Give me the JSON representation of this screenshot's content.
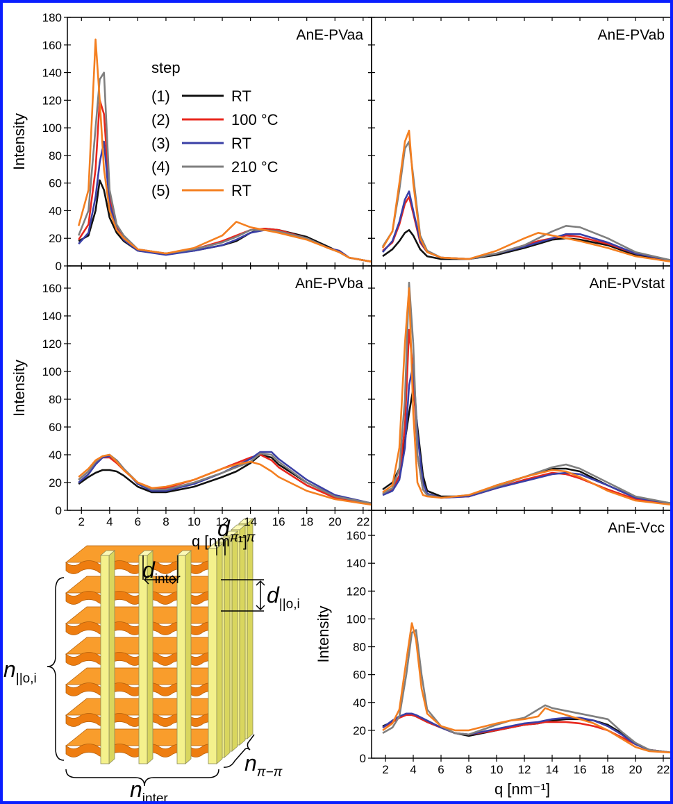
{
  "chart_data": [
    {
      "type": "line",
      "title": "AnE-PVaa",
      "y_label": "Intensity",
      "legend_title": "step",
      "x": [
        1.8,
        2.5,
        3,
        3.3,
        3.6,
        4,
        4.5,
        5,
        6,
        8,
        10,
        12,
        13,
        14,
        15,
        16,
        18,
        19.5,
        20.3,
        21,
        22.6
      ],
      "xlim": [
        1,
        22.6
      ],
      "xticks": [
        2,
        4,
        6,
        8,
        10,
        12,
        14,
        16,
        18,
        20,
        22
      ],
      "ylim": [
        0,
        180
      ],
      "yticks": [
        0,
        20,
        40,
        60,
        80,
        100,
        120,
        140,
        160,
        180
      ],
      "show_x_tick_labels": false,
      "show_y_tick_labels": true,
      "series": [
        {
          "step": "(1)",
          "name": "RT",
          "color": "#111111",
          "values": [
            18,
            22,
            40,
            62,
            55,
            35,
            24,
            18,
            11,
            9,
            11,
            15,
            18,
            24,
            27,
            26,
            21,
            14,
            10,
            6,
            3
          ]
        },
        {
          "step": "(2)",
          "name": "100 °C",
          "color": "#e8271d",
          "values": [
            19,
            30,
            70,
            120,
            110,
            50,
            28,
            20,
            12,
            9,
            12,
            18,
            22,
            26,
            27,
            26,
            20,
            13,
            11,
            6,
            3
          ]
        },
        {
          "step": "(3)",
          "name": "RT",
          "color": "#3a3fa6",
          "values": [
            16,
            24,
            50,
            75,
            90,
            45,
            27,
            19,
            11,
            8,
            11,
            15,
            19,
            24,
            26,
            25,
            20,
            13,
            11,
            6,
            3
          ]
        },
        {
          "step": "(4)",
          "name": "210 °C",
          "color": "#7f7f7f",
          "values": [
            22,
            40,
            100,
            135,
            140,
            55,
            30,
            22,
            12,
            9,
            12,
            17,
            21,
            26,
            26,
            25,
            20,
            13,
            10,
            6,
            3
          ]
        },
        {
          "step": "(5)",
          "name": "RT",
          "color": "#f47f20",
          "values": [
            29,
            55,
            164,
            120,
            70,
            40,
            26,
            20,
            12,
            9,
            13,
            22,
            32,
            28,
            26,
            24,
            19,
            13,
            10,
            6,
            3
          ]
        }
      ]
    },
    {
      "type": "line",
      "title": "AnE-PVab",
      "x": [
        1.8,
        2.5,
        3,
        3.4,
        3.7,
        4,
        4.5,
        5,
        6,
        8,
        10,
        12,
        13,
        14,
        15,
        16,
        18,
        20,
        22.6
      ],
      "xlim": [
        1,
        22.7
      ],
      "xticks": [
        2,
        4,
        6,
        8,
        10,
        12,
        14,
        16,
        18,
        20,
        22
      ],
      "ylim": [
        0,
        180
      ],
      "yticks": [
        0,
        20,
        40,
        60,
        80,
        100,
        120,
        140,
        160,
        180
      ],
      "show_x_tick_labels": false,
      "show_y_tick_labels": false,
      "series": [
        {
          "color": "#111111",
          "values": [
            7,
            12,
            18,
            24,
            26,
            22,
            12,
            7,
            5,
            5,
            8,
            13,
            16,
            19,
            20,
            19,
            15,
            8,
            4
          ]
        },
        {
          "color": "#e8271d",
          "values": [
            11,
            17,
            30,
            45,
            50,
            38,
            17,
            10,
            6,
            5,
            9,
            15,
            18,
            20,
            22,
            21,
            16,
            9,
            4
          ]
        },
        {
          "color": "#3a3fa6",
          "values": [
            10,
            18,
            32,
            48,
            54,
            40,
            18,
            10,
            6,
            5,
            9,
            14,
            17,
            20,
            23,
            23,
            17,
            9,
            4
          ]
        },
        {
          "color": "#7f7f7f",
          "values": [
            14,
            25,
            55,
            85,
            90,
            65,
            22,
            11,
            6,
            5,
            9,
            15,
            20,
            25,
            29,
            28,
            20,
            10,
            4
          ]
        },
        {
          "color": "#f47f20",
          "values": [
            13,
            25,
            60,
            90,
            98,
            60,
            20,
            10,
            6,
            5,
            11,
            20,
            24,
            22,
            20,
            18,
            13,
            7,
            3
          ]
        }
      ]
    },
    {
      "type": "line",
      "title": "AnE-PVba",
      "y_label": "Intensity",
      "x_label": "q  [nm⁻¹]",
      "x": [
        1.8,
        2.5,
        3,
        3.5,
        4,
        4.5,
        5,
        6,
        7,
        8,
        10,
        12,
        13,
        14,
        14.7,
        15.5,
        16,
        18,
        20,
        22.6
      ],
      "xlim": [
        1,
        22.6
      ],
      "xticks": [
        2,
        4,
        6,
        8,
        10,
        12,
        14,
        16,
        18,
        20,
        22
      ],
      "ylim": [
        0,
        176
      ],
      "yticks": [
        0,
        20,
        40,
        60,
        80,
        100,
        120,
        140,
        160
      ],
      "show_x_tick_labels": true,
      "show_y_tick_labels": true,
      "series": [
        {
          "color": "#111111",
          "values": [
            19,
            24,
            27,
            29,
            29,
            28,
            25,
            17,
            13,
            13,
            17,
            24,
            28,
            34,
            40,
            38,
            33,
            20,
            10,
            5
          ]
        },
        {
          "color": "#e8271d",
          "values": [
            22,
            28,
            34,
            38,
            38,
            34,
            29,
            20,
            16,
            16,
            22,
            30,
            34,
            38,
            40,
            36,
            31,
            18,
            9,
            5
          ]
        },
        {
          "color": "#3a3fa6",
          "values": [
            20,
            26,
            33,
            38,
            39,
            36,
            30,
            19,
            14,
            14,
            19,
            27,
            32,
            37,
            42,
            42,
            37,
            22,
            11,
            5
          ]
        },
        {
          "color": "#7f7f7f",
          "values": [
            22,
            28,
            35,
            39,
            40,
            36,
            30,
            20,
            15,
            15,
            20,
            27,
            31,
            35,
            41,
            40,
            35,
            20,
            10,
            5
          ]
        },
        {
          "color": "#f47f20",
          "values": [
            24,
            30,
            36,
            39,
            40,
            35,
            29,
            20,
            16,
            17,
            22,
            30,
            33,
            35,
            33,
            28,
            24,
            14,
            8,
            4
          ]
        }
      ]
    },
    {
      "type": "line",
      "title": "AnE-PVstat",
      "x": [
        1.8,
        2.5,
        3,
        3.4,
        3.7,
        4,
        4.3,
        4.7,
        5,
        6,
        8,
        10,
        12,
        14,
        15,
        16,
        18,
        20,
        22.6
      ],
      "xlim": [
        1,
        22.7
      ],
      "xticks": [
        2,
        4,
        6,
        8,
        10,
        12,
        14,
        16,
        18,
        20,
        22
      ],
      "ylim": [
        0,
        176
      ],
      "yticks": [
        0,
        20,
        40,
        60,
        80,
        100,
        120,
        140,
        160
      ],
      "show_x_tick_labels": false,
      "show_y_tick_labels": false,
      "series": [
        {
          "color": "#111111",
          "values": [
            15,
            20,
            30,
            50,
            70,
            88,
            60,
            25,
            14,
            10,
            10,
            18,
            24,
            30,
            30,
            28,
            18,
            9,
            5
          ]
        },
        {
          "color": "#e8271d",
          "values": [
            12,
            15,
            25,
            60,
            130,
            100,
            40,
            15,
            11,
            9,
            10,
            16,
            22,
            27,
            26,
            23,
            15,
            8,
            5
          ]
        },
        {
          "color": "#3a3fa6",
          "values": [
            11,
            14,
            22,
            45,
            90,
            105,
            55,
            20,
            12,
            9,
            10,
            16,
            21,
            26,
            27,
            26,
            18,
            9,
            5
          ]
        },
        {
          "color": "#7f7f7f",
          "values": [
            12,
            16,
            30,
            80,
            164,
            120,
            40,
            15,
            11,
            9,
            11,
            17,
            24,
            31,
            33,
            30,
            20,
            10,
            5
          ]
        },
        {
          "color": "#f47f20",
          "values": [
            13,
            18,
            45,
            120,
            160,
            70,
            20,
            11,
            10,
            9,
            11,
            18,
            24,
            29,
            28,
            24,
            14,
            7,
            4
          ]
        }
      ]
    },
    {
      "type": "line",
      "title": "AnE-Vcc",
      "y_label": "Intensity",
      "x_label": "q  [nm⁻¹]",
      "x": [
        1.8,
        2.5,
        3,
        3.5,
        3.9,
        4.2,
        4.6,
        5,
        6,
        7,
        8,
        10,
        11,
        12,
        13,
        13.5,
        14,
        15,
        16,
        17,
        18,
        19,
        20,
        21,
        22.6
      ],
      "xlim": [
        1,
        22.7
      ],
      "xticks": [
        2,
        4,
        6,
        8,
        10,
        12,
        14,
        16,
        18,
        20,
        22
      ],
      "ylim": [
        0,
        178
      ],
      "yticks": [
        0,
        20,
        40,
        60,
        80,
        100,
        120,
        140,
        160
      ],
      "show_x_tick_labels": true,
      "show_y_tick_labels": true,
      "series": [
        {
          "color": "#111111",
          "values": [
            23,
            26,
            29,
            32,
            31,
            30,
            28,
            26,
            22,
            18,
            16,
            20,
            22,
            24,
            25,
            26,
            27,
            28,
            28,
            27,
            24,
            18,
            10,
            6,
            4
          ]
        },
        {
          "color": "#e8271d",
          "values": [
            22,
            26,
            29,
            31,
            31,
            30,
            28,
            26,
            22,
            18,
            17,
            20,
            22,
            24,
            25,
            26,
            26,
            26,
            25,
            23,
            20,
            15,
            10,
            6,
            4
          ]
        },
        {
          "color": "#3a3fa6",
          "values": [
            22,
            27,
            30,
            32,
            32,
            31,
            29,
            27,
            22,
            18,
            17,
            21,
            23,
            25,
            26,
            27,
            28,
            29,
            29,
            27,
            23,
            17,
            10,
            6,
            4
          ]
        },
        {
          "color": "#7f7f7f",
          "values": [
            18,
            22,
            30,
            60,
            90,
            92,
            60,
            35,
            23,
            18,
            17,
            24,
            27,
            29,
            35,
            38,
            36,
            34,
            32,
            30,
            28,
            19,
            11,
            6,
            4
          ]
        },
        {
          "color": "#f47f20",
          "values": [
            20,
            25,
            35,
            70,
            97,
            85,
            50,
            32,
            23,
            20,
            20,
            25,
            27,
            28,
            30,
            36,
            34,
            31,
            28,
            25,
            20,
            14,
            8,
            5,
            4
          ]
        }
      ]
    }
  ],
  "diagram": {
    "labels": [
      {
        "main": "d",
        "sub": "inter"
      },
      {
        "main": "d",
        "sub": "π−π"
      },
      {
        "main": "d",
        "sub": "||o,i"
      },
      {
        "main": "n",
        "sub": "||o,i"
      },
      {
        "main": "n",
        "sub": "inter"
      },
      {
        "main": "n",
        "sub": "π−π"
      }
    ]
  }
}
